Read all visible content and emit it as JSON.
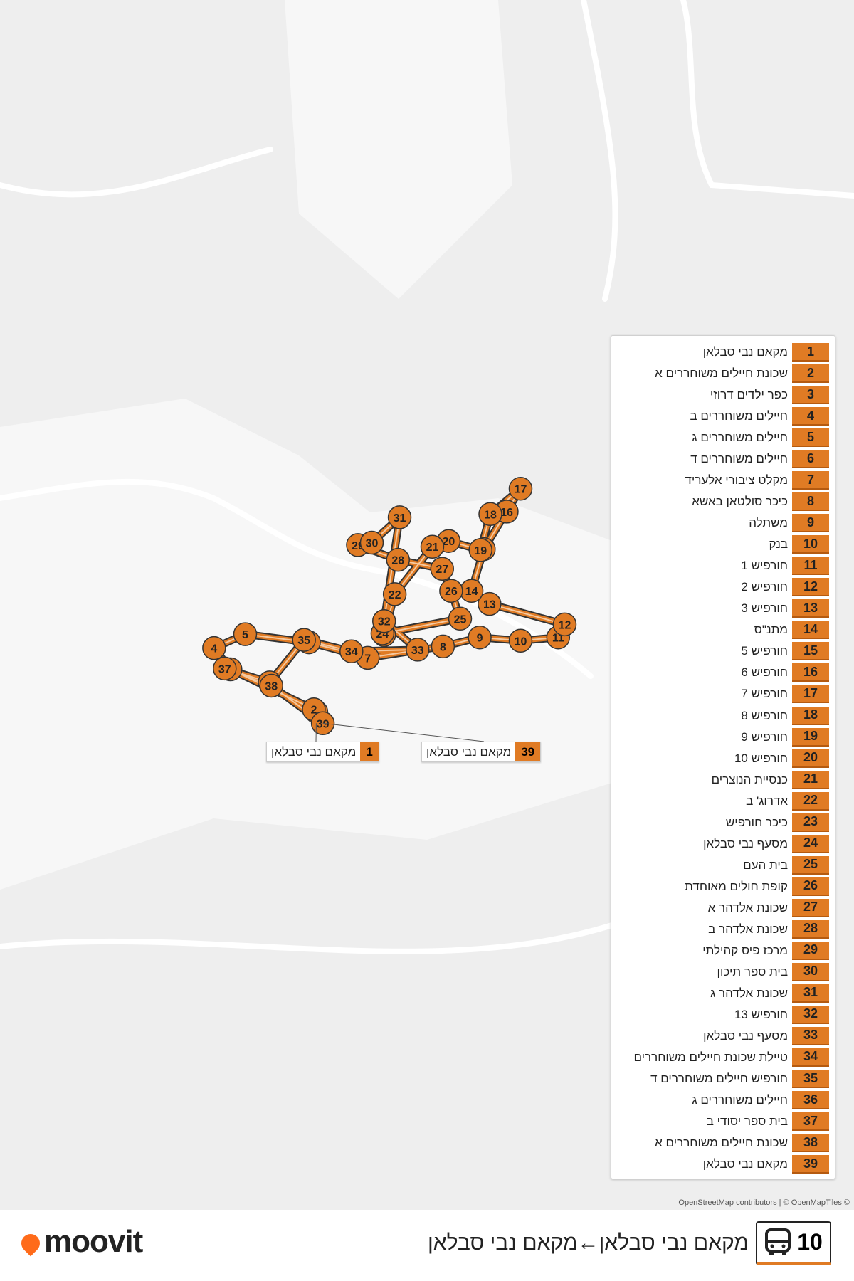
{
  "route": {
    "line": "10",
    "title": "מקאם נבי סבלאן←מקאם נבי סבלאן"
  },
  "stops": [
    {
      "number": 1,
      "name": "מקאם נבי סבלאן"
    },
    {
      "number": 2,
      "name": "שכונת חיילים משוחררים א"
    },
    {
      "number": 3,
      "name": "כפר ילדים דרוזי"
    },
    {
      "number": 4,
      "name": "חיילים משוחררים ב"
    },
    {
      "number": 5,
      "name": "חיילים משוחררים ג"
    },
    {
      "number": 6,
      "name": "חיילים משוחררים ד"
    },
    {
      "number": 7,
      "name": "מקלט ציבורי אלעריד"
    },
    {
      "number": 8,
      "name": "כיכר סולטאן באשא"
    },
    {
      "number": 9,
      "name": "משתלה"
    },
    {
      "number": 10,
      "name": "בנק"
    },
    {
      "number": 11,
      "name": "חורפיש 1"
    },
    {
      "number": 12,
      "name": "חורפיש 2"
    },
    {
      "number": 13,
      "name": "חורפיש 3"
    },
    {
      "number": 14,
      "name": "מתנ\"ס"
    },
    {
      "number": 15,
      "name": "חורפיש 5"
    },
    {
      "number": 16,
      "name": "חורפיש 6"
    },
    {
      "number": 17,
      "name": "חורפיש 7"
    },
    {
      "number": 18,
      "name": "חורפיש 8"
    },
    {
      "number": 19,
      "name": "חורפיש 9"
    },
    {
      "number": 20,
      "name": "חורפיש 10"
    },
    {
      "number": 21,
      "name": "כנסיית הנוצרים"
    },
    {
      "number": 22,
      "name": "אדרוג' ב"
    },
    {
      "number": 23,
      "name": "כיכר חורפיש"
    },
    {
      "number": 24,
      "name": "מסעף נבי סבלאן"
    },
    {
      "number": 25,
      "name": "בית העם"
    },
    {
      "number": 26,
      "name": "קופת חולים מאוחדת"
    },
    {
      "number": 27,
      "name": "שכונת אלדהר א"
    },
    {
      "number": 28,
      "name": "שכונת אלדהר ב"
    },
    {
      "number": 29,
      "name": "מרכז פיס קהילתי"
    },
    {
      "number": 30,
      "name": "בית ספר תיכון"
    },
    {
      "number": 31,
      "name": "שכונת אלדהר ג"
    },
    {
      "number": 32,
      "name": "חורפיש 13"
    },
    {
      "number": 33,
      "name": "מסעף נבי סבלאן"
    },
    {
      "number": 34,
      "name": "טיילת שכונת חיילים משוחררים"
    },
    {
      "number": 35,
      "name": "חורפיש חיילים משוחררים ד"
    },
    {
      "number": 36,
      "name": "חיילים משוחררים ג"
    },
    {
      "number": 37,
      "name": "בית ספר יסודי ב"
    },
    {
      "number": 38,
      "name": "שכונת חיילים משוחררים א"
    },
    {
      "number": 39,
      "name": "מקאם נבי סבלאן"
    }
  ],
  "attribution": "OpenStreetMap contributors | © OpenMapTiles ©",
  "brand": "moovit"
}
